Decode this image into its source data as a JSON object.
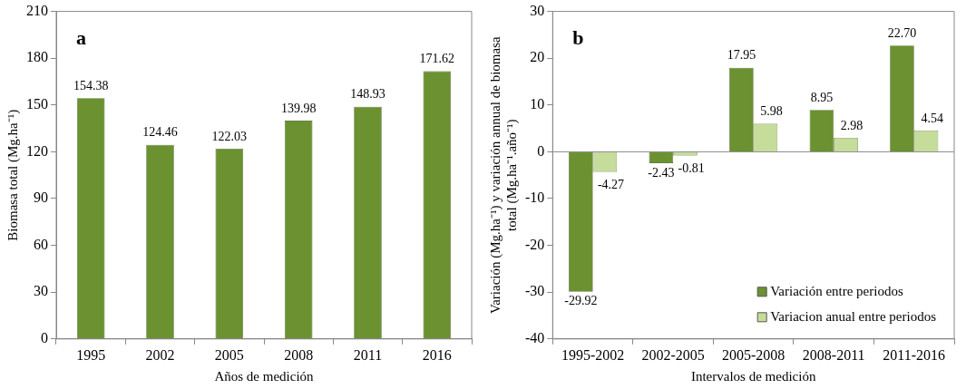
{
  "chart_data": [
    {
      "type": "bar",
      "title": "a",
      "xlabel": "Años de medición",
      "ylabel": "Biomasa total (Mg.ha⁻¹)",
      "categories": [
        "1995",
        "2002",
        "2005",
        "2008",
        "2011",
        "2016"
      ],
      "series": [
        {
          "color": "#6b9130",
          "values": [
            154.38,
            124.46,
            122.03,
            139.98,
            148.93,
            171.62
          ],
          "value_labels": [
            "154.38",
            "124.46",
            "122.03",
            "139.98",
            "148.93",
            "171.62"
          ]
        }
      ],
      "ylim": [
        0,
        210
      ],
      "yticks": [
        0,
        30,
        60,
        90,
        120,
        150,
        180,
        210
      ],
      "grid": false,
      "legend": false
    },
    {
      "type": "bar",
      "title": "b",
      "xlabel": "Intervalos de medición",
      "ylabel": "Variación (Mg.ha⁻¹) y variación annual de biomasa total (Mg.ha⁻¹.año⁻¹)",
      "categories": [
        "1995-2002",
        "2002-2005",
        "2005-2008",
        "2008-2011",
        "2011-2016"
      ],
      "series": [
        {
          "name": "Variación entre periodos",
          "color": "#6b9130",
          "values": [
            -29.92,
            -2.43,
            17.95,
            8.95,
            22.7
          ],
          "value_labels": [
            "-29.92",
            "-2.43",
            "17.95",
            "8.95",
            "22.70"
          ]
        },
        {
          "name": "Variacion anual entre periodos",
          "color": "#c6dc9a",
          "values": [
            -4.27,
            -0.81,
            5.98,
            2.98,
            4.54
          ],
          "value_labels": [
            "-4.27",
            "-0.81",
            "5.98",
            "2.98",
            "4.54"
          ]
        }
      ],
      "ylim": [
        -40,
        30
      ],
      "yticks": [
        -40,
        -30,
        -20,
        -10,
        0,
        10,
        20,
        30
      ],
      "ref_lines": [
        {
          "axis": "y",
          "value": 0,
          "color": "#888888"
        }
      ],
      "grid": false,
      "legend": "bottom right"
    }
  ]
}
